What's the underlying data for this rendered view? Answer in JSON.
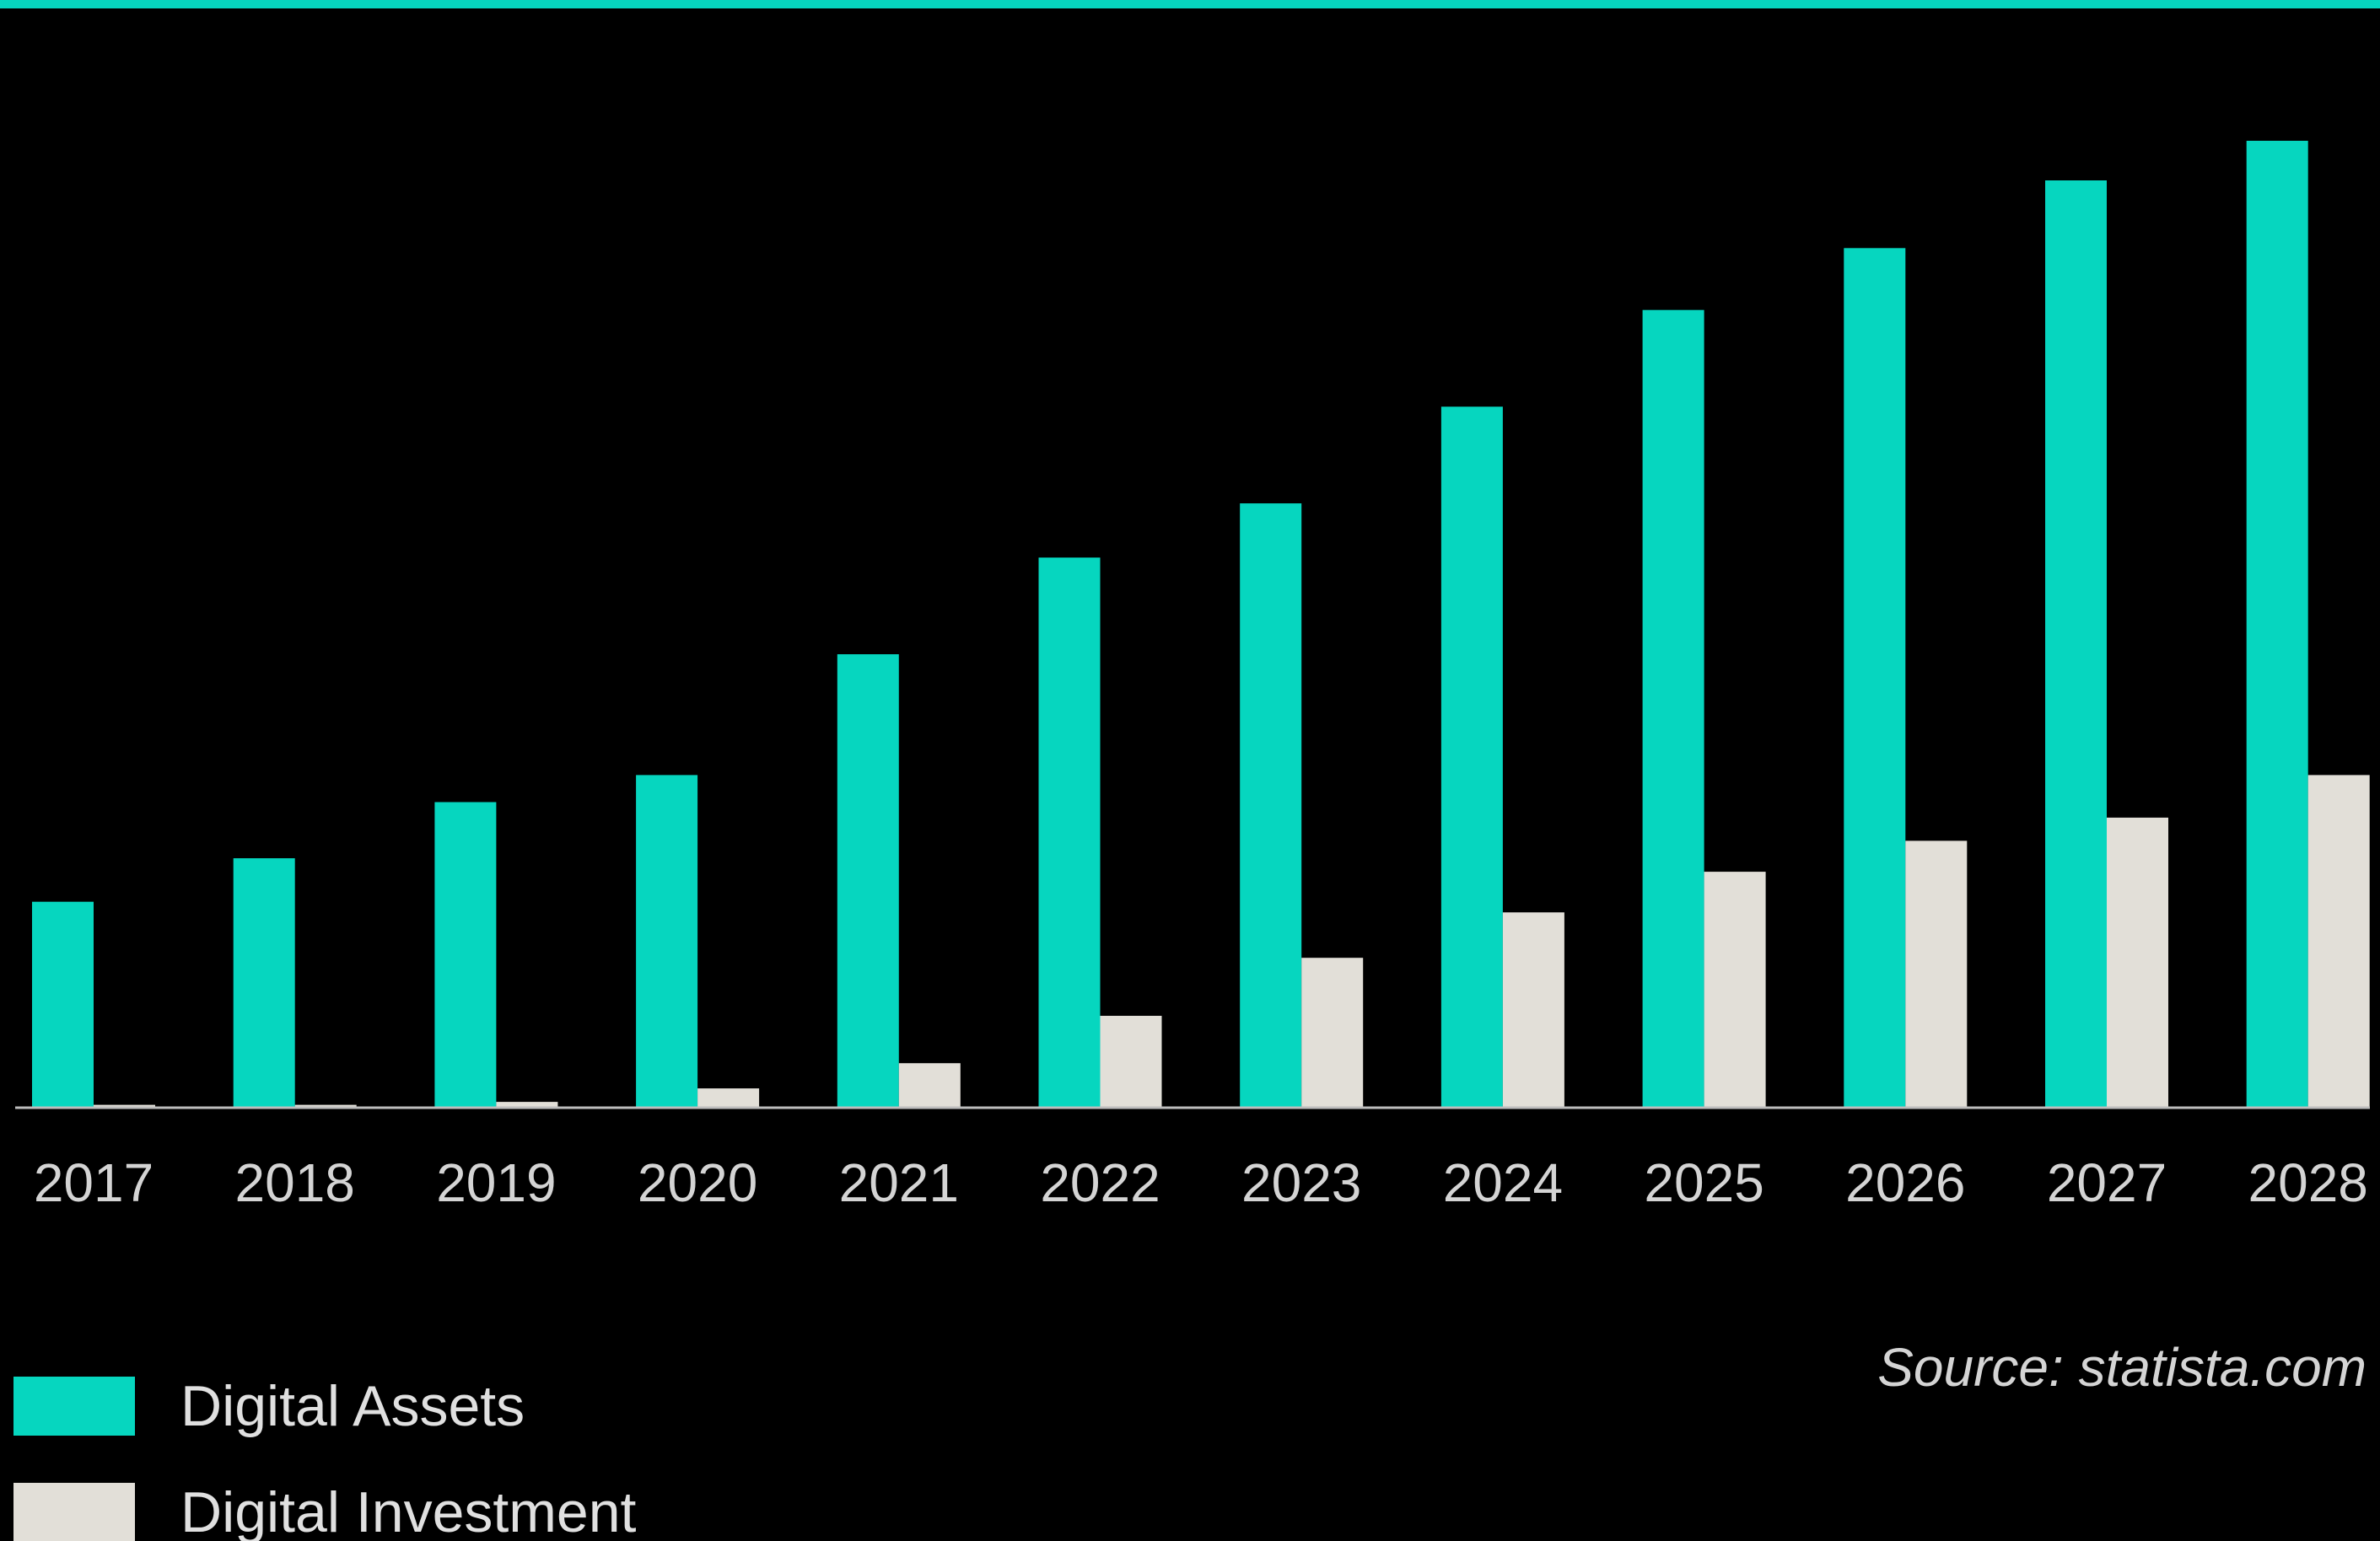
{
  "colors": {
    "accent": "#06d6bf",
    "secondary": "#e2dfd8",
    "background": "#000000",
    "text": "#d4d4d4",
    "baseline": "#bdbdbd"
  },
  "source": "Source: statista.com",
  "chart_data": {
    "type": "bar",
    "title": "",
    "xlabel": "",
    "ylabel": "",
    "grid": false,
    "legend_position": "bottom-left",
    "categories": [
      "2017",
      "2018",
      "2019",
      "2020",
      "2021",
      "2022",
      "2023",
      "2024",
      "2025",
      "2026",
      "2027",
      "2028"
    ],
    "ylim": [
      0,
      100
    ],
    "series": [
      {
        "name": "Digital Assets",
        "color": "#06d6bf",
        "values": [
          21.3,
          25.8,
          31.6,
          34.4,
          46.9,
          56.9,
          62.5,
          72.5,
          82.5,
          88.9,
          95.9,
          100
        ]
      },
      {
        "name": "Digital Investment",
        "color": "#e2dfd8",
        "values": [
          0.3,
          0.3,
          0.6,
          2.0,
          4.6,
          9.5,
          15.5,
          20.2,
          24.4,
          27.6,
          30.0,
          34.4
        ]
      }
    ]
  }
}
